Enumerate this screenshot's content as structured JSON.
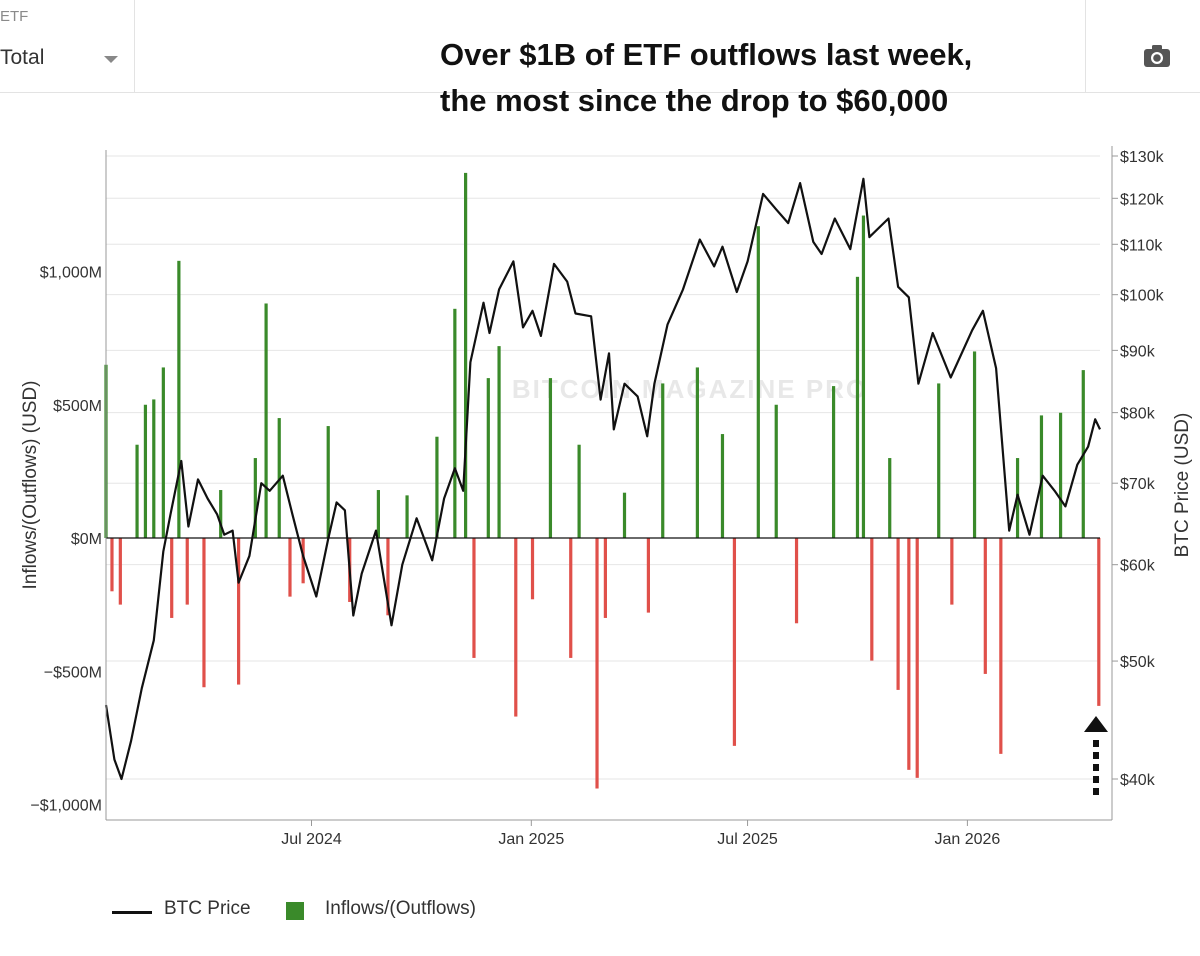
{
  "controls": {
    "etf_label": "ETF",
    "etf_selected": "Total"
  },
  "headline": {
    "line1": "Over $1B of ETF outflows last week,",
    "line2": "the most since the drop to $60,000"
  },
  "icons": {
    "camera": "camera-icon",
    "arrow": "dotted-up-arrow-icon"
  },
  "colors": {
    "inflow": "#3a8a2a",
    "outflow": "#e0504a",
    "price_line": "#111111",
    "grid": "#e6e6e6"
  },
  "chart_data": {
    "type": "bar",
    "watermark": "BITCOIN MAGAZINE PRO",
    "xlabel": "",
    "ylabel": "Inflows/(Outflows) (USD)",
    "y2label": "BTC Price (USD)",
    "x_ticks": [
      "Jul 2024",
      "Jan 2025",
      "Jul 2025",
      "Jan 2026"
    ],
    "x_range": [
      "2024-01-11",
      "2026-04-22"
    ],
    "ylim": [
      -1050,
      1450
    ],
    "y_ticks": [
      {
        "value": 1000,
        "label": "$1,000M"
      },
      {
        "value": 500,
        "label": "$500M"
      },
      {
        "value": 0,
        "label": "$0M"
      },
      {
        "value": -500,
        "label": "−$500M"
      },
      {
        "value": -1000,
        "label": "−$1,000M"
      }
    ],
    "y2lim": [
      36500,
      130000
    ],
    "y2_scale": "log",
    "y2_ticks": [
      {
        "value": 130000,
        "label": "$130k"
      },
      {
        "value": 120000,
        "label": "$120k"
      },
      {
        "value": 110000,
        "label": "$110k"
      },
      {
        "value": 100000,
        "label": "$100k"
      },
      {
        "value": 90000,
        "label": "$90k"
      },
      {
        "value": 80000,
        "label": "$80k"
      },
      {
        "value": 70000,
        "label": "$70k"
      },
      {
        "value": 60000,
        "label": "$60k"
      },
      {
        "value": 50000,
        "label": "$50k"
      },
      {
        "value": 40000,
        "label": "$40k"
      }
    ],
    "legend": {
      "position": "bottom-left"
    },
    "grid": true,
    "series": [
      {
        "name": "BTC Price",
        "type": "line",
        "points": [
          [
            "2024-01-11",
            46000
          ],
          [
            "2024-01-18",
            41500
          ],
          [
            "2024-01-24",
            40000
          ],
          [
            "2024-02-01",
            43000
          ],
          [
            "2024-02-10",
            47500
          ],
          [
            "2024-02-20",
            52000
          ],
          [
            "2024-02-28",
            61500
          ],
          [
            "2024-03-05",
            66000
          ],
          [
            "2024-03-14",
            73000
          ],
          [
            "2024-03-20",
            64500
          ],
          [
            "2024-03-28",
            70500
          ],
          [
            "2024-04-05",
            68000
          ],
          [
            "2024-04-13",
            66000
          ],
          [
            "2024-04-19",
            63500
          ],
          [
            "2024-04-26",
            64000
          ],
          [
            "2024-05-01",
            58000
          ],
          [
            "2024-05-10",
            61000
          ],
          [
            "2024-05-20",
            70000
          ],
          [
            "2024-05-27",
            69000
          ],
          [
            "2024-06-07",
            71000
          ],
          [
            "2024-06-15",
            66000
          ],
          [
            "2024-06-24",
            61000
          ],
          [
            "2024-07-05",
            56500
          ],
          [
            "2024-07-15",
            63000
          ],
          [
            "2024-07-22",
            67500
          ],
          [
            "2024-07-29",
            66500
          ],
          [
            "2024-08-05",
            54500
          ],
          [
            "2024-08-12",
            59000
          ],
          [
            "2024-08-24",
            64000
          ],
          [
            "2024-09-06",
            53500
          ],
          [
            "2024-09-15",
            60000
          ],
          [
            "2024-09-27",
            65500
          ],
          [
            "2024-10-10",
            60500
          ],
          [
            "2024-10-20",
            68000
          ],
          [
            "2024-10-29",
            72000
          ],
          [
            "2024-11-05",
            69000
          ],
          [
            "2024-11-11",
            88000
          ],
          [
            "2024-11-22",
            98500
          ],
          [
            "2024-11-27",
            93000
          ],
          [
            "2024-12-05",
            101000
          ],
          [
            "2024-12-17",
            106500
          ],
          [
            "2024-12-25",
            94000
          ],
          [
            "2025-01-02",
            97000
          ],
          [
            "2025-01-09",
            92500
          ],
          [
            "2025-01-20",
            106000
          ],
          [
            "2025-01-31",
            102500
          ],
          [
            "2025-02-07",
            96500
          ],
          [
            "2025-02-20",
            96000
          ],
          [
            "2025-02-28",
            82000
          ],
          [
            "2025-03-07",
            89500
          ],
          [
            "2025-03-11",
            77500
          ],
          [
            "2025-03-20",
            84500
          ],
          [
            "2025-03-31",
            82500
          ],
          [
            "2025-04-08",
            76500
          ],
          [
            "2025-04-14",
            84500
          ],
          [
            "2025-04-25",
            94500
          ],
          [
            "2025-05-08",
            101000
          ],
          [
            "2025-05-22",
            111000
          ],
          [
            "2025-06-03",
            105500
          ],
          [
            "2025-06-10",
            109500
          ],
          [
            "2025-06-22",
            100500
          ],
          [
            "2025-07-01",
            106500
          ],
          [
            "2025-07-14",
            121000
          ],
          [
            "2025-07-25",
            117500
          ],
          [
            "2025-08-04",
            114500
          ],
          [
            "2025-08-14",
            123500
          ],
          [
            "2025-08-25",
            110500
          ],
          [
            "2025-09-01",
            108000
          ],
          [
            "2025-09-12",
            115500
          ],
          [
            "2025-09-25",
            109000
          ],
          [
            "2025-10-06",
            124500
          ],
          [
            "2025-10-11",
            111500
          ],
          [
            "2025-10-27",
            115500
          ],
          [
            "2025-11-04",
            101500
          ],
          [
            "2025-11-13",
            99500
          ],
          [
            "2025-11-21",
            84500
          ],
          [
            "2025-12-03",
            93000
          ],
          [
            "2025-12-18",
            85500
          ],
          [
            "2026-01-05",
            93500
          ],
          [
            "2026-01-14",
            97000
          ],
          [
            "2026-01-25",
            87000
          ],
          [
            "2026-02-05",
            64000
          ],
          [
            "2026-02-12",
            68500
          ],
          [
            "2026-02-22",
            63500
          ],
          [
            "2026-03-05",
            71000
          ],
          [
            "2026-03-15",
            69000
          ],
          [
            "2026-03-24",
            67000
          ],
          [
            "2026-04-03",
            72500
          ],
          [
            "2026-04-12",
            75000
          ],
          [
            "2026-04-18",
            79000
          ],
          [
            "2026-04-22",
            77500
          ]
        ]
      },
      {
        "name": "Inflows/(Outflows)",
        "type": "bar",
        "unit": "USD millions",
        "points": [
          [
            "2024-01-11",
            650
          ],
          [
            "2024-01-16",
            -200
          ],
          [
            "2024-01-23",
            -250
          ],
          [
            "2024-02-06",
            350
          ],
          [
            "2024-02-13",
            500
          ],
          [
            "2024-02-20",
            520
          ],
          [
            "2024-02-28",
            640
          ],
          [
            "2024-03-06",
            -300
          ],
          [
            "2024-03-12",
            1040
          ],
          [
            "2024-03-19",
            -250
          ],
          [
            "2024-04-02",
            -560
          ],
          [
            "2024-04-16",
            180
          ],
          [
            "2024-05-01",
            -550
          ],
          [
            "2024-05-15",
            300
          ],
          [
            "2024-05-24",
            880
          ],
          [
            "2024-06-04",
            450
          ],
          [
            "2024-06-13",
            -220
          ],
          [
            "2024-06-24",
            -170
          ],
          [
            "2024-07-15",
            420
          ],
          [
            "2024-08-02",
            -240
          ],
          [
            "2024-08-26",
            180
          ],
          [
            "2024-09-03",
            -290
          ],
          [
            "2024-09-19",
            160
          ],
          [
            "2024-10-14",
            380
          ],
          [
            "2024-10-29",
            860
          ],
          [
            "2024-11-07",
            1370
          ],
          [
            "2024-11-14",
            -450
          ],
          [
            "2024-11-26",
            600
          ],
          [
            "2024-12-05",
            720
          ],
          [
            "2024-12-19",
            -670
          ],
          [
            "2025-01-02",
            -230
          ],
          [
            "2025-01-17",
            600
          ],
          [
            "2025-02-03",
            -450
          ],
          [
            "2025-02-10",
            350
          ],
          [
            "2025-02-25",
            -940
          ],
          [
            "2025-03-04",
            -300
          ],
          [
            "2025-03-20",
            170
          ],
          [
            "2025-04-09",
            -280
          ],
          [
            "2025-04-21",
            580
          ],
          [
            "2025-05-20",
            640
          ],
          [
            "2025-06-10",
            390
          ],
          [
            "2025-06-20",
            -780
          ],
          [
            "2025-07-10",
            1170
          ],
          [
            "2025-07-25",
            500
          ],
          [
            "2025-08-11",
            -320
          ],
          [
            "2025-09-11",
            570
          ],
          [
            "2025-10-01",
            980
          ],
          [
            "2025-10-06",
            1210
          ],
          [
            "2025-10-13",
            -460
          ],
          [
            "2025-10-28",
            300
          ],
          [
            "2025-11-04",
            -570
          ],
          [
            "2025-11-13",
            -870
          ],
          [
            "2025-11-20",
            -900
          ],
          [
            "2025-12-08",
            580
          ],
          [
            "2025-12-19",
            -250
          ],
          [
            "2026-01-07",
            700
          ],
          [
            "2026-01-16",
            -510
          ],
          [
            "2026-01-29",
            -810
          ],
          [
            "2026-02-12",
            300
          ],
          [
            "2026-03-04",
            460
          ],
          [
            "2026-03-20",
            470
          ],
          [
            "2026-04-08",
            630
          ],
          [
            "2026-04-21",
            -630
          ]
        ]
      }
    ]
  },
  "legend_items": {
    "price": "BTC Price",
    "flows": "Inflows/(Outflows)"
  }
}
